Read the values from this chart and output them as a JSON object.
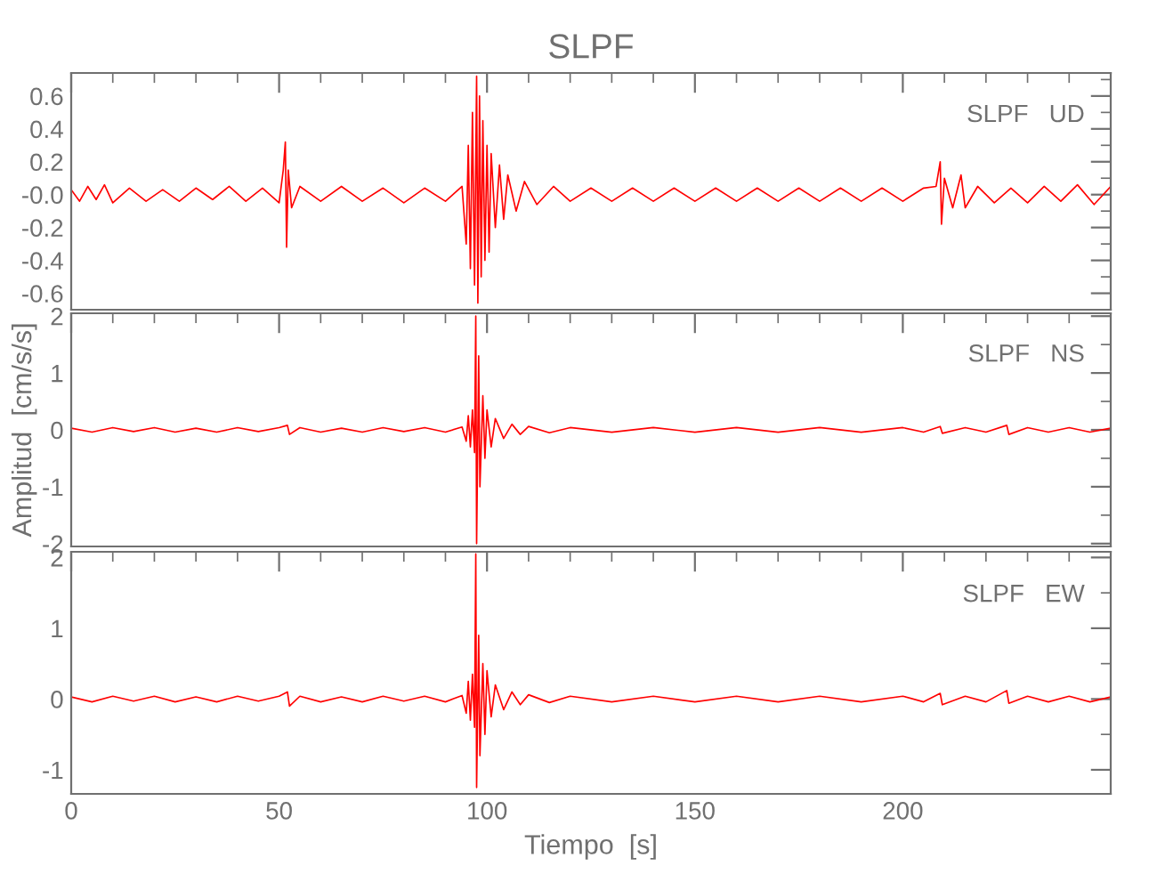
{
  "chart_data": [
    {
      "type": "line",
      "title": "SLPF",
      "annotations": [
        "SLPF   UD"
      ],
      "xlim": [
        0,
        250
      ],
      "xticks": [
        0,
        50,
        100,
        150,
        200
      ],
      "ylim": [
        -0.7,
        0.74
      ],
      "yticks": [
        -0.6,
        -0.4,
        -0.2,
        {
          "value": 0,
          "label": "-0.0"
        },
        0.2,
        0.4,
        0.6
      ],
      "tick_labels": "y",
      "grid": false,
      "marker": "none",
      "line_style": "solid",
      "series": [
        {
          "color": "#ff0000",
          "x": [
            0,
            2,
            4,
            6,
            8,
            10,
            14,
            18,
            22,
            26,
            30,
            34,
            38,
            42,
            46,
            50,
            51,
            51.5,
            51.8,
            52.2,
            53,
            55,
            60,
            65,
            70,
            75,
            80,
            85,
            90,
            94,
            95,
            95.5,
            96,
            96.5,
            97,
            97.5,
            97.8,
            98.2,
            98.6,
            99,
            99.5,
            100,
            100.5,
            101,
            102,
            103,
            104,
            105,
            107,
            109,
            112,
            116,
            120,
            125,
            130,
            135,
            140,
            145,
            150,
            155,
            160,
            165,
            170,
            175,
            180,
            185,
            190,
            195,
            200,
            205,
            208,
            209,
            209.3,
            210,
            212,
            214,
            215,
            218,
            222,
            226,
            230,
            234,
            238,
            242,
            246,
            250
          ],
          "values": [
            0.03,
            -0.04,
            0.05,
            -0.03,
            0.06,
            -0.05,
            0.04,
            -0.04,
            0.03,
            -0.04,
            0.04,
            -0.03,
            0.05,
            -0.04,
            0.04,
            -0.05,
            0.15,
            0.32,
            -0.32,
            0.15,
            -0.08,
            0.05,
            -0.04,
            0.05,
            -0.04,
            0.04,
            -0.05,
            0.04,
            -0.04,
            0.05,
            -0.3,
            0.3,
            -0.45,
            0.5,
            -0.55,
            0.72,
            -0.66,
            0.6,
            -0.5,
            0.45,
            -0.4,
            0.3,
            -0.35,
            0.25,
            -0.2,
            0.18,
            -0.15,
            0.12,
            -0.1,
            0.08,
            -0.06,
            0.05,
            -0.04,
            0.04,
            -0.04,
            0.04,
            -0.04,
            0.04,
            -0.04,
            0.04,
            -0.04,
            0.04,
            -0.04,
            0.04,
            -0.04,
            0.04,
            -0.04,
            0.04,
            -0.04,
            0.04,
            0.05,
            0.2,
            -0.18,
            0.1,
            -0.08,
            0.12,
            -0.08,
            0.05,
            -0.05,
            0.04,
            -0.05,
            0.05,
            -0.04,
            0.06,
            -0.06,
            0.05
          ]
        }
      ]
    },
    {
      "type": "line",
      "ylabel": "Amplitud  [cm/s/s]",
      "annotations": [
        "SLPF   NS"
      ],
      "xlim": [
        0,
        250
      ],
      "xticks": [
        0,
        50,
        100,
        150,
        200
      ],
      "ylim": [
        -2.05,
        2.05
      ],
      "yticks": [
        -2,
        -1,
        0,
        1,
        2
      ],
      "tick_labels": "y",
      "grid": false,
      "marker": "none",
      "line_style": "solid",
      "series": [
        {
          "color": "#ff0000",
          "x": [
            0,
            5,
            10,
            15,
            20,
            25,
            30,
            35,
            40,
            45,
            50,
            52,
            52.5,
            55,
            60,
            65,
            70,
            75,
            80,
            85,
            90,
            94,
            95,
            95.5,
            96,
            96.5,
            97,
            97.3,
            97.5,
            98,
            98.3,
            99,
            99.5,
            100,
            101,
            102,
            104,
            106,
            108,
            110,
            115,
            120,
            130,
            140,
            150,
            160,
            170,
            180,
            190,
            200,
            205,
            209,
            209.5,
            215,
            220,
            225,
            225.5,
            230,
            235,
            240,
            245,
            250
          ],
          "values": [
            0.03,
            -0.04,
            0.04,
            -0.03,
            0.04,
            -0.04,
            0.03,
            -0.04,
            0.04,
            -0.03,
            0.04,
            0.08,
            -0.08,
            0.04,
            -0.04,
            0.03,
            -0.04,
            0.04,
            -0.03,
            0.04,
            -0.04,
            0.05,
            -0.2,
            0.25,
            -0.3,
            0.35,
            -0.4,
            2.0,
            -2.0,
            1.3,
            -1.0,
            0.6,
            -0.5,
            0.35,
            -0.3,
            0.2,
            -0.15,
            0.1,
            -0.08,
            0.06,
            -0.05,
            0.04,
            -0.04,
            0.04,
            -0.04,
            0.04,
            -0.04,
            0.04,
            -0.04,
            0.04,
            -0.04,
            0.06,
            -0.06,
            0.04,
            -0.04,
            0.08,
            -0.08,
            0.04,
            -0.04,
            0.04,
            -0.04,
            0.03
          ]
        }
      ]
    },
    {
      "type": "line",
      "xlabel": "Tiempo  [s]",
      "annotations": [
        "SLPF   EW"
      ],
      "xlim": [
        0,
        250
      ],
      "xticks": [
        0,
        50,
        100,
        150,
        200
      ],
      "ylim": [
        -1.34,
        2.08
      ],
      "yticks": [
        -1,
        0,
        1,
        2
      ],
      "grid": false,
      "marker": "none",
      "line_style": "solid",
      "series": [
        {
          "color": "#ff0000",
          "x": [
            0,
            5,
            10,
            15,
            20,
            25,
            30,
            35,
            40,
            45,
            50,
            52,
            52.5,
            55,
            60,
            65,
            70,
            75,
            80,
            85,
            90,
            94,
            95,
            95.5,
            96,
            96.5,
            97,
            97.3,
            97.5,
            98,
            98.3,
            99,
            99.5,
            100,
            101,
            102,
            104,
            106,
            108,
            110,
            115,
            120,
            130,
            140,
            150,
            160,
            170,
            180,
            190,
            200,
            205,
            209,
            209.5,
            215,
            220,
            225,
            225.5,
            230,
            235,
            240,
            245,
            250
          ],
          "values": [
            0.03,
            -0.04,
            0.04,
            -0.03,
            0.04,
            -0.04,
            0.03,
            -0.04,
            0.04,
            -0.03,
            0.04,
            0.1,
            -0.1,
            0.04,
            -0.04,
            0.03,
            -0.04,
            0.04,
            -0.03,
            0.04,
            -0.04,
            0.05,
            -0.2,
            0.25,
            -0.3,
            0.35,
            -0.4,
            2.05,
            -1.25,
            0.9,
            -0.8,
            0.5,
            -0.5,
            0.4,
            -0.25,
            0.2,
            -0.15,
            0.1,
            -0.08,
            0.06,
            -0.05,
            0.04,
            -0.04,
            0.04,
            -0.04,
            0.04,
            -0.04,
            0.04,
            -0.04,
            0.04,
            -0.04,
            0.08,
            -0.08,
            0.04,
            -0.04,
            0.12,
            -0.06,
            0.04,
            -0.04,
            0.04,
            -0.04,
            0.03
          ]
        }
      ]
    }
  ]
}
